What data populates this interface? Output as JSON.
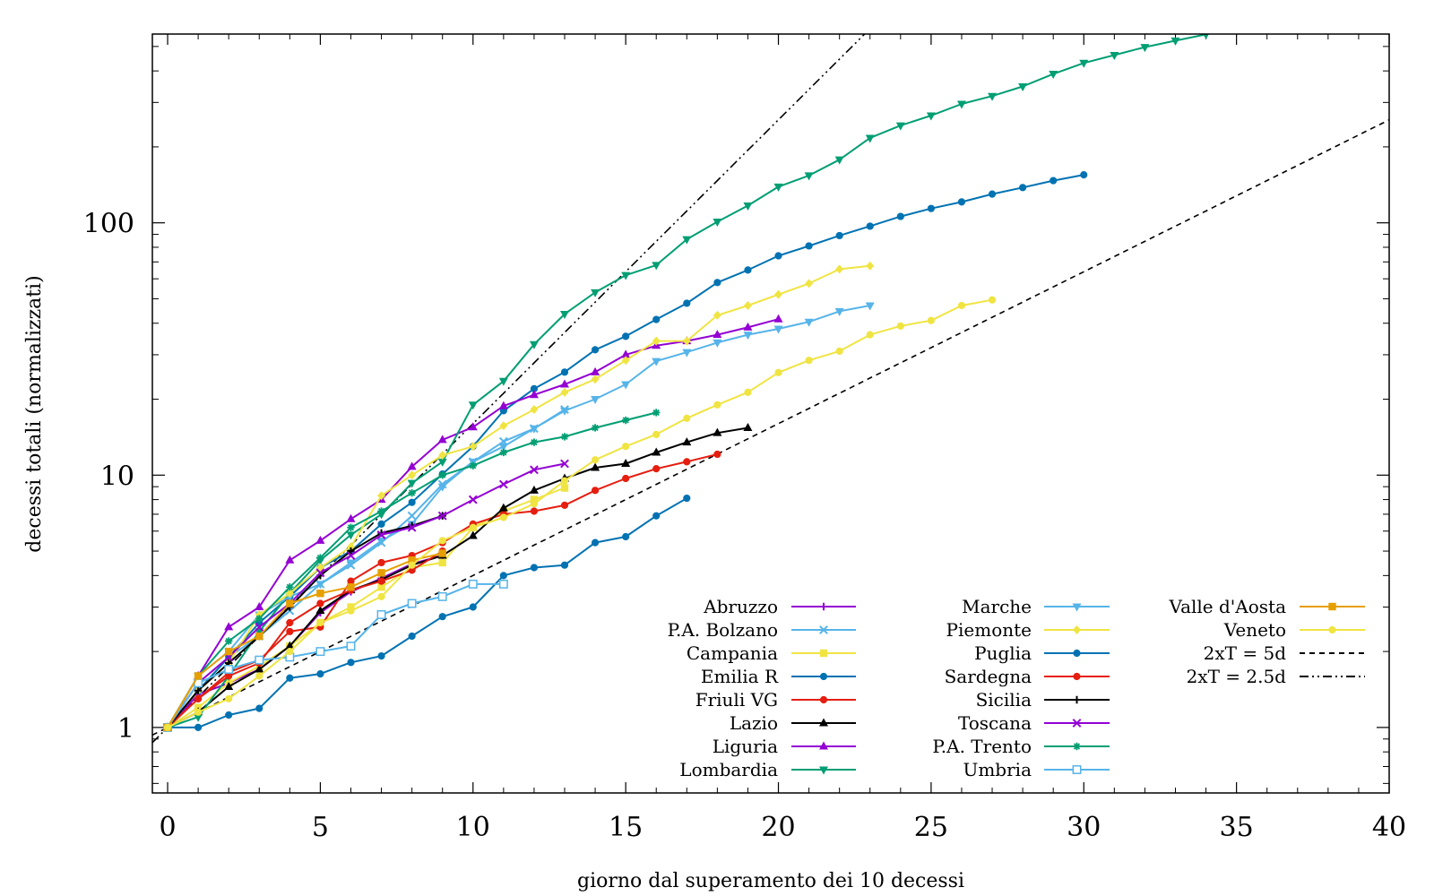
{
  "chart_data": {
    "type": "line",
    "title": "",
    "xlabel": "giorno dal superamento dei 10 decessi",
    "ylabel": "decessi totali (normalizzati)",
    "xlim": [
      -0.5,
      40
    ],
    "ylim": [
      0.55,
      560
    ],
    "yscale": "log",
    "grid": false,
    "legend_position": "bottom-right",
    "x_ticks": [
      0,
      5,
      10,
      15,
      20,
      25,
      30,
      35,
      40
    ],
    "x_tick_labels": [
      "0",
      "5",
      "10",
      "15",
      "20",
      "25",
      "30",
      "35",
      "40"
    ],
    "y_ticks": [
      1,
      10,
      100
    ],
    "y_tick_labels": [
      "1",
      "10",
      "100"
    ],
    "series": [
      {
        "name": "Abruzzo",
        "color": "#9400d3",
        "marker": "plus",
        "values": [
          1,
          1.35,
          1.5,
          1.7,
          2.1,
          2.85,
          3.45,
          3.9,
          4.45,
          4.8
        ]
      },
      {
        "name": "P.A. Bolzano",
        "color": "#56b4e9",
        "marker": "x",
        "values": [
          1,
          1.4,
          1.9,
          2.3,
          2.9,
          3.7,
          4.4,
          5.4,
          6.9,
          9.2,
          11.3,
          13.6,
          15.3,
          18.2
        ]
      },
      {
        "name": "Campania",
        "color": "#f0e442",
        "marker": "square",
        "values": [
          1,
          1.2,
          1.5,
          1.75,
          2.1,
          2.6,
          3.0,
          3.6,
          4.3,
          4.5,
          6.2,
          7.2,
          8.0,
          8.9
        ]
      },
      {
        "name": "Emilia R",
        "color": "#0072b2",
        "marker": "circle",
        "values": [
          1,
          1.4,
          1.9,
          2.6,
          3.3,
          4.3,
          5.0,
          6.4,
          7.8,
          10.1,
          13.0,
          18.0,
          22.0,
          25.6,
          31.4,
          35.5,
          41.4,
          48.0,
          58.0,
          65.0,
          74.0,
          81.0,
          89.0,
          97.0,
          106.0,
          114.0,
          121.0,
          130.0,
          138.0,
          147.0,
          155.0
        ]
      },
      {
        "name": "Friuli VG",
        "color": "#e51e10",
        "marker": "circle",
        "values": [
          1,
          1.3,
          1.65,
          1.85,
          2.4,
          2.5,
          3.8,
          4.5,
          4.8,
          5.4,
          6.4,
          7.0,
          7.2,
          7.6,
          8.7,
          9.7,
          10.6,
          11.3,
          12.1
        ]
      },
      {
        "name": "Lazio",
        "color": "#000000",
        "marker": "triangle",
        "values": [
          1,
          1.15,
          1.45,
          1.7,
          2.1,
          2.9,
          3.5,
          3.85,
          4.4,
          4.8,
          5.75,
          7.4,
          8.7,
          9.7,
          10.7,
          11.1,
          12.3,
          13.5,
          14.7,
          15.4
        ]
      },
      {
        "name": "Liguria",
        "color": "#9400d3",
        "marker": "triangle",
        "values": [
          1,
          1.6,
          2.5,
          3.0,
          4.6,
          5.5,
          6.7,
          8.0,
          10.8,
          13.8,
          15.5,
          18.8,
          20.8,
          22.9,
          25.6,
          30.0,
          32.6,
          34.0,
          36.0,
          38.5,
          41.5
        ]
      },
      {
        "name": "Lombardia",
        "color": "#009e73",
        "marker": "triangle-down",
        "values": [
          1,
          1.1,
          1.6,
          2.4,
          3.4,
          4.6,
          5.8,
          7.0,
          9.3,
          11.3,
          19.0,
          23.6,
          33.0,
          43.5,
          53.0,
          62.0,
          68.0,
          86.0,
          101.0,
          117.0,
          139.0,
          154.0,
          178.0,
          217.0,
          243.0,
          266.0,
          296.0,
          318.0,
          347.0,
          389.0,
          430.0,
          462.0,
          497.0,
          527.0,
          558.0
        ]
      },
      {
        "name": "Marche",
        "color": "#56b4e9",
        "marker": "triangle-down",
        "values": [
          1,
          1.6,
          2.0,
          2.8,
          3.3,
          3.7,
          4.5,
          5.5,
          6.4,
          9.0,
          11.3,
          13.0,
          15.3,
          18.0,
          20.0,
          22.9,
          28.3,
          30.7,
          33.5,
          36.0,
          38.0,
          40.5,
          44.6,
          47.0
        ]
      },
      {
        "name": "Piemonte",
        "color": "#f0e442",
        "marker": "diamond",
        "values": [
          1,
          1.4,
          1.8,
          2.8,
          3.4,
          4.3,
          5.2,
          8.3,
          10.0,
          12.0,
          13.0,
          15.7,
          18.2,
          21.3,
          24.0,
          28.5,
          34.0,
          34.0,
          43.0,
          47.0,
          52.0,
          57.5,
          65.5,
          67.5
        ]
      },
      {
        "name": "Puglia",
        "color": "#0072b2",
        "marker": "circle",
        "values": [
          1,
          1.0,
          1.12,
          1.19,
          1.57,
          1.63,
          1.81,
          1.92,
          2.3,
          2.75,
          3.0,
          4.0,
          4.3,
          4.4,
          5.4,
          5.7,
          6.9,
          8.1
        ]
      },
      {
        "name": "Sardegna",
        "color": "#e51e10",
        "marker": "circle",
        "values": [
          1,
          1.3,
          1.6,
          1.8,
          2.6,
          3.1,
          3.5,
          3.8,
          4.2,
          5.0
        ]
      },
      {
        "name": "Sicilia",
        "color": "#000000",
        "marker": "plus",
        "values": [
          1,
          1.4,
          1.8,
          2.3,
          3.0,
          4.0,
          5.0,
          5.9,
          6.3,
          6.9
        ]
      },
      {
        "name": "Toscana",
        "color": "#9400d3",
        "marker": "x",
        "values": [
          1,
          1.5,
          1.9,
          2.5,
          3.1,
          4.1,
          4.8,
          5.8,
          6.2,
          6.9,
          8.0,
          9.2,
          10.5,
          11.1
        ]
      },
      {
        "name": "P.A. Trento",
        "color": "#009e73",
        "marker": "star",
        "values": [
          1,
          1.6,
          2.2,
          2.7,
          3.6,
          4.7,
          6.2,
          7.2,
          8.5,
          10.0,
          10.9,
          12.3,
          13.5,
          14.2,
          15.4,
          16.5,
          17.7
        ]
      },
      {
        "name": "Umbria",
        "color": "#56b4e9",
        "marker": "square-open",
        "values": [
          1,
          1.5,
          1.7,
          1.85,
          1.9,
          2.0,
          2.1,
          2.8,
          3.1,
          3.3,
          3.7,
          3.7
        ]
      },
      {
        "name": "Valle d'Aosta",
        "color": "#e69f00",
        "marker": "square",
        "values": [
          1,
          1.6,
          2.0,
          2.3,
          3.1,
          3.4,
          3.6,
          4.1,
          4.6,
          4.9
        ]
      },
      {
        "name": "Veneto",
        "color": "#f0e442",
        "marker": "circle",
        "values": [
          1,
          1.15,
          1.3,
          1.6,
          2.0,
          2.6,
          2.9,
          3.3,
          4.4,
          5.5,
          6.2,
          6.8,
          7.7,
          9.5,
          11.5,
          13.0,
          14.5,
          16.8,
          19.0,
          21.3,
          25.5,
          28.5,
          31.0,
          36.0,
          39.0,
          41.0,
          47.0,
          49.5
        ]
      }
    ],
    "reference_lines": [
      {
        "name": "2xT = 5d",
        "doubling_days": 5,
        "style": "dashed",
        "color": "#000000",
        "x": [
          -0.5,
          40
        ]
      },
      {
        "name": "2xT = 2.5d",
        "doubling_days": 2.5,
        "style": "dashdotdot",
        "color": "#000000",
        "x": [
          -0.5,
          23.5
        ]
      }
    ]
  }
}
